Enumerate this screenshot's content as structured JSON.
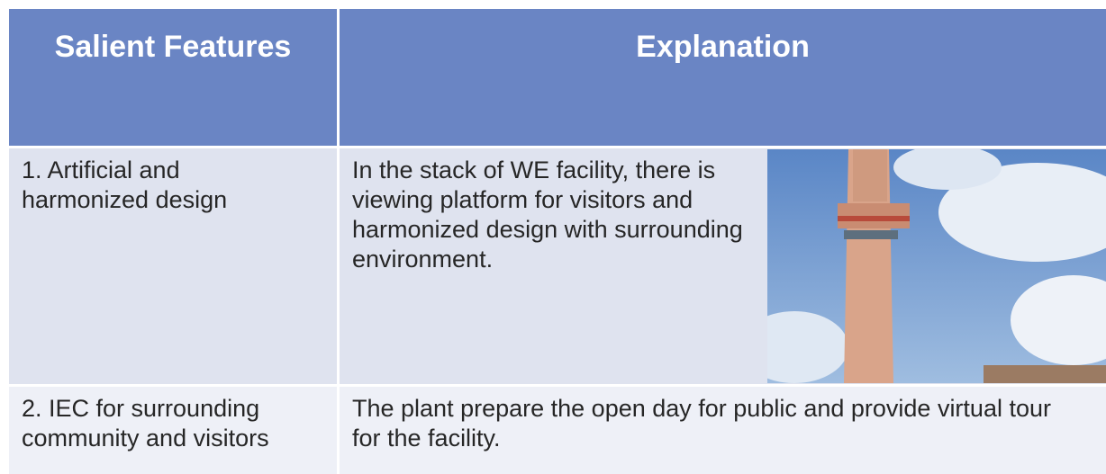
{
  "table": {
    "header": [
      "Salient Features",
      "Explanation"
    ],
    "rows": [
      [
        "1.  Artificial and harmonized design",
        "In the stack of WE facility, there is viewing platform for visitors and harmonized design with surrounding environment."
      ],
      [
        "2. IEC for surrounding community and visitors",
        "The plant prepare the open day for public and provide virtual tour for the facility."
      ]
    ]
  }
}
